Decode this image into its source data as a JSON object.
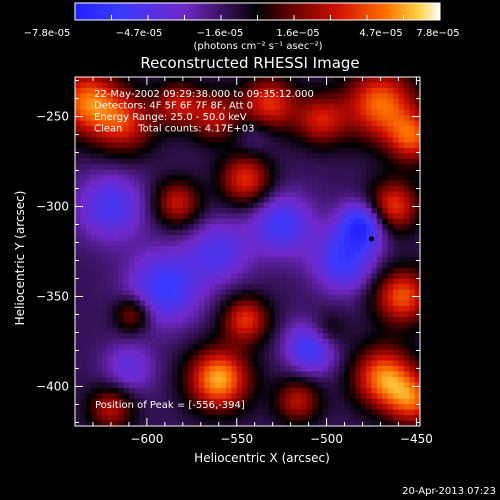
{
  "chart_data": {
    "type": "heatmap",
    "title": "Reconstructed RHESSI Image",
    "xlabel": "Heliocentric X (arcsec)",
    "ylabel": "Heliocentric Y (arcsec)",
    "xlim": [
      -640,
      -448
    ],
    "ylim": [
      -422,
      -228
    ],
    "x_ticks": [
      -600,
      -550,
      -500,
      -450
    ],
    "y_ticks": [
      -250,
      -300,
      -350,
      -400
    ],
    "colorbar": {
      "range": [
        -7.8e-05,
        7.8e-05
      ],
      "tick_labels": [
        "-7.8e-05",
        "-4.7e-05",
        "-1.6e-05",
        "1.6e-05",
        "4.7e-05",
        "7.8e-05"
      ],
      "unit_label": "(photons cm⁻² s⁻¹ asec⁻²)"
    },
    "info_lines": [
      "22-May-2002 09:29:38.000 to 09:35:12.000",
      "Detectors: 4F 5F 6F 7F 8F, Att 0",
      "Energy Range: 25.0 - 50.0 keV",
      "Clean     Total counts: 4.17E+03"
    ],
    "peak_label": "Position of Peak = [-556,-394]",
    "peak": [
      -556,
      -394
    ],
    "marker": [
      -475,
      -318
    ],
    "sources": [
      {
        "x": -560,
        "y": -396,
        "amp": 1.0,
        "sigma": 12
      },
      {
        "x": -633,
        "y": -242,
        "amp": 0.85,
        "sigma": 13
      },
      {
        "x": -612,
        "y": -254,
        "amp": 0.6,
        "sigma": 12
      },
      {
        "x": -583,
        "y": -243,
        "amp": 0.55,
        "sigma": 9
      },
      {
        "x": -562,
        "y": -250,
        "amp": 0.55,
        "sigma": 10
      },
      {
        "x": -532,
        "y": -243,
        "amp": 0.7,
        "sigma": 11
      },
      {
        "x": -503,
        "y": -252,
        "amp": 0.6,
        "sigma": 10
      },
      {
        "x": -470,
        "y": -243,
        "amp": 0.85,
        "sigma": 14
      },
      {
        "x": -452,
        "y": -262,
        "amp": 0.7,
        "sigma": 10
      },
      {
        "x": -545,
        "y": -285,
        "amp": 0.7,
        "sigma": 10
      },
      {
        "x": -583,
        "y": -298,
        "amp": 0.6,
        "sigma": 9
      },
      {
        "x": -463,
        "y": -300,
        "amp": 0.75,
        "sigma": 10
      },
      {
        "x": -458,
        "y": -350,
        "amp": 0.8,
        "sigma": 11
      },
      {
        "x": -468,
        "y": -395,
        "amp": 0.9,
        "sigma": 12
      },
      {
        "x": -452,
        "y": -408,
        "amp": 0.7,
        "sigma": 10
      },
      {
        "x": -545,
        "y": -363,
        "amp": 0.7,
        "sigma": 9
      },
      {
        "x": -608,
        "y": -360,
        "amp": 0.5,
        "sigma": 7
      },
      {
        "x": -620,
        "y": -412,
        "amp": 0.55,
        "sigma": 9
      },
      {
        "x": -516,
        "y": -408,
        "amp": 0.55,
        "sigma": 9
      },
      {
        "x": -500,
        "y": -370,
        "amp": 0.35,
        "sigma": 8
      },
      {
        "x": -525,
        "y": -310,
        "amp": -0.55,
        "sigma": 12
      },
      {
        "x": -490,
        "y": -330,
        "amp": -0.6,
        "sigma": 12
      },
      {
        "x": -480,
        "y": -310,
        "amp": -0.75,
        "sigma": 9
      },
      {
        "x": -590,
        "y": -345,
        "amp": -0.6,
        "sigma": 14
      },
      {
        "x": -620,
        "y": -300,
        "amp": -0.5,
        "sigma": 13
      },
      {
        "x": -508,
        "y": -378,
        "amp": -0.65,
        "sigma": 10
      },
      {
        "x": -560,
        "y": -325,
        "amp": -0.45,
        "sigma": 12
      },
      {
        "x": -610,
        "y": -390,
        "amp": -0.35,
        "sigma": 10
      },
      {
        "x": -540,
        "y": -260,
        "amp": -0.2,
        "sigma": 8
      }
    ],
    "grid": false,
    "colormap": "blue-black-red-yellow-white"
  },
  "footer": {
    "timestamp": "20-Apr-2013 07:23"
  }
}
